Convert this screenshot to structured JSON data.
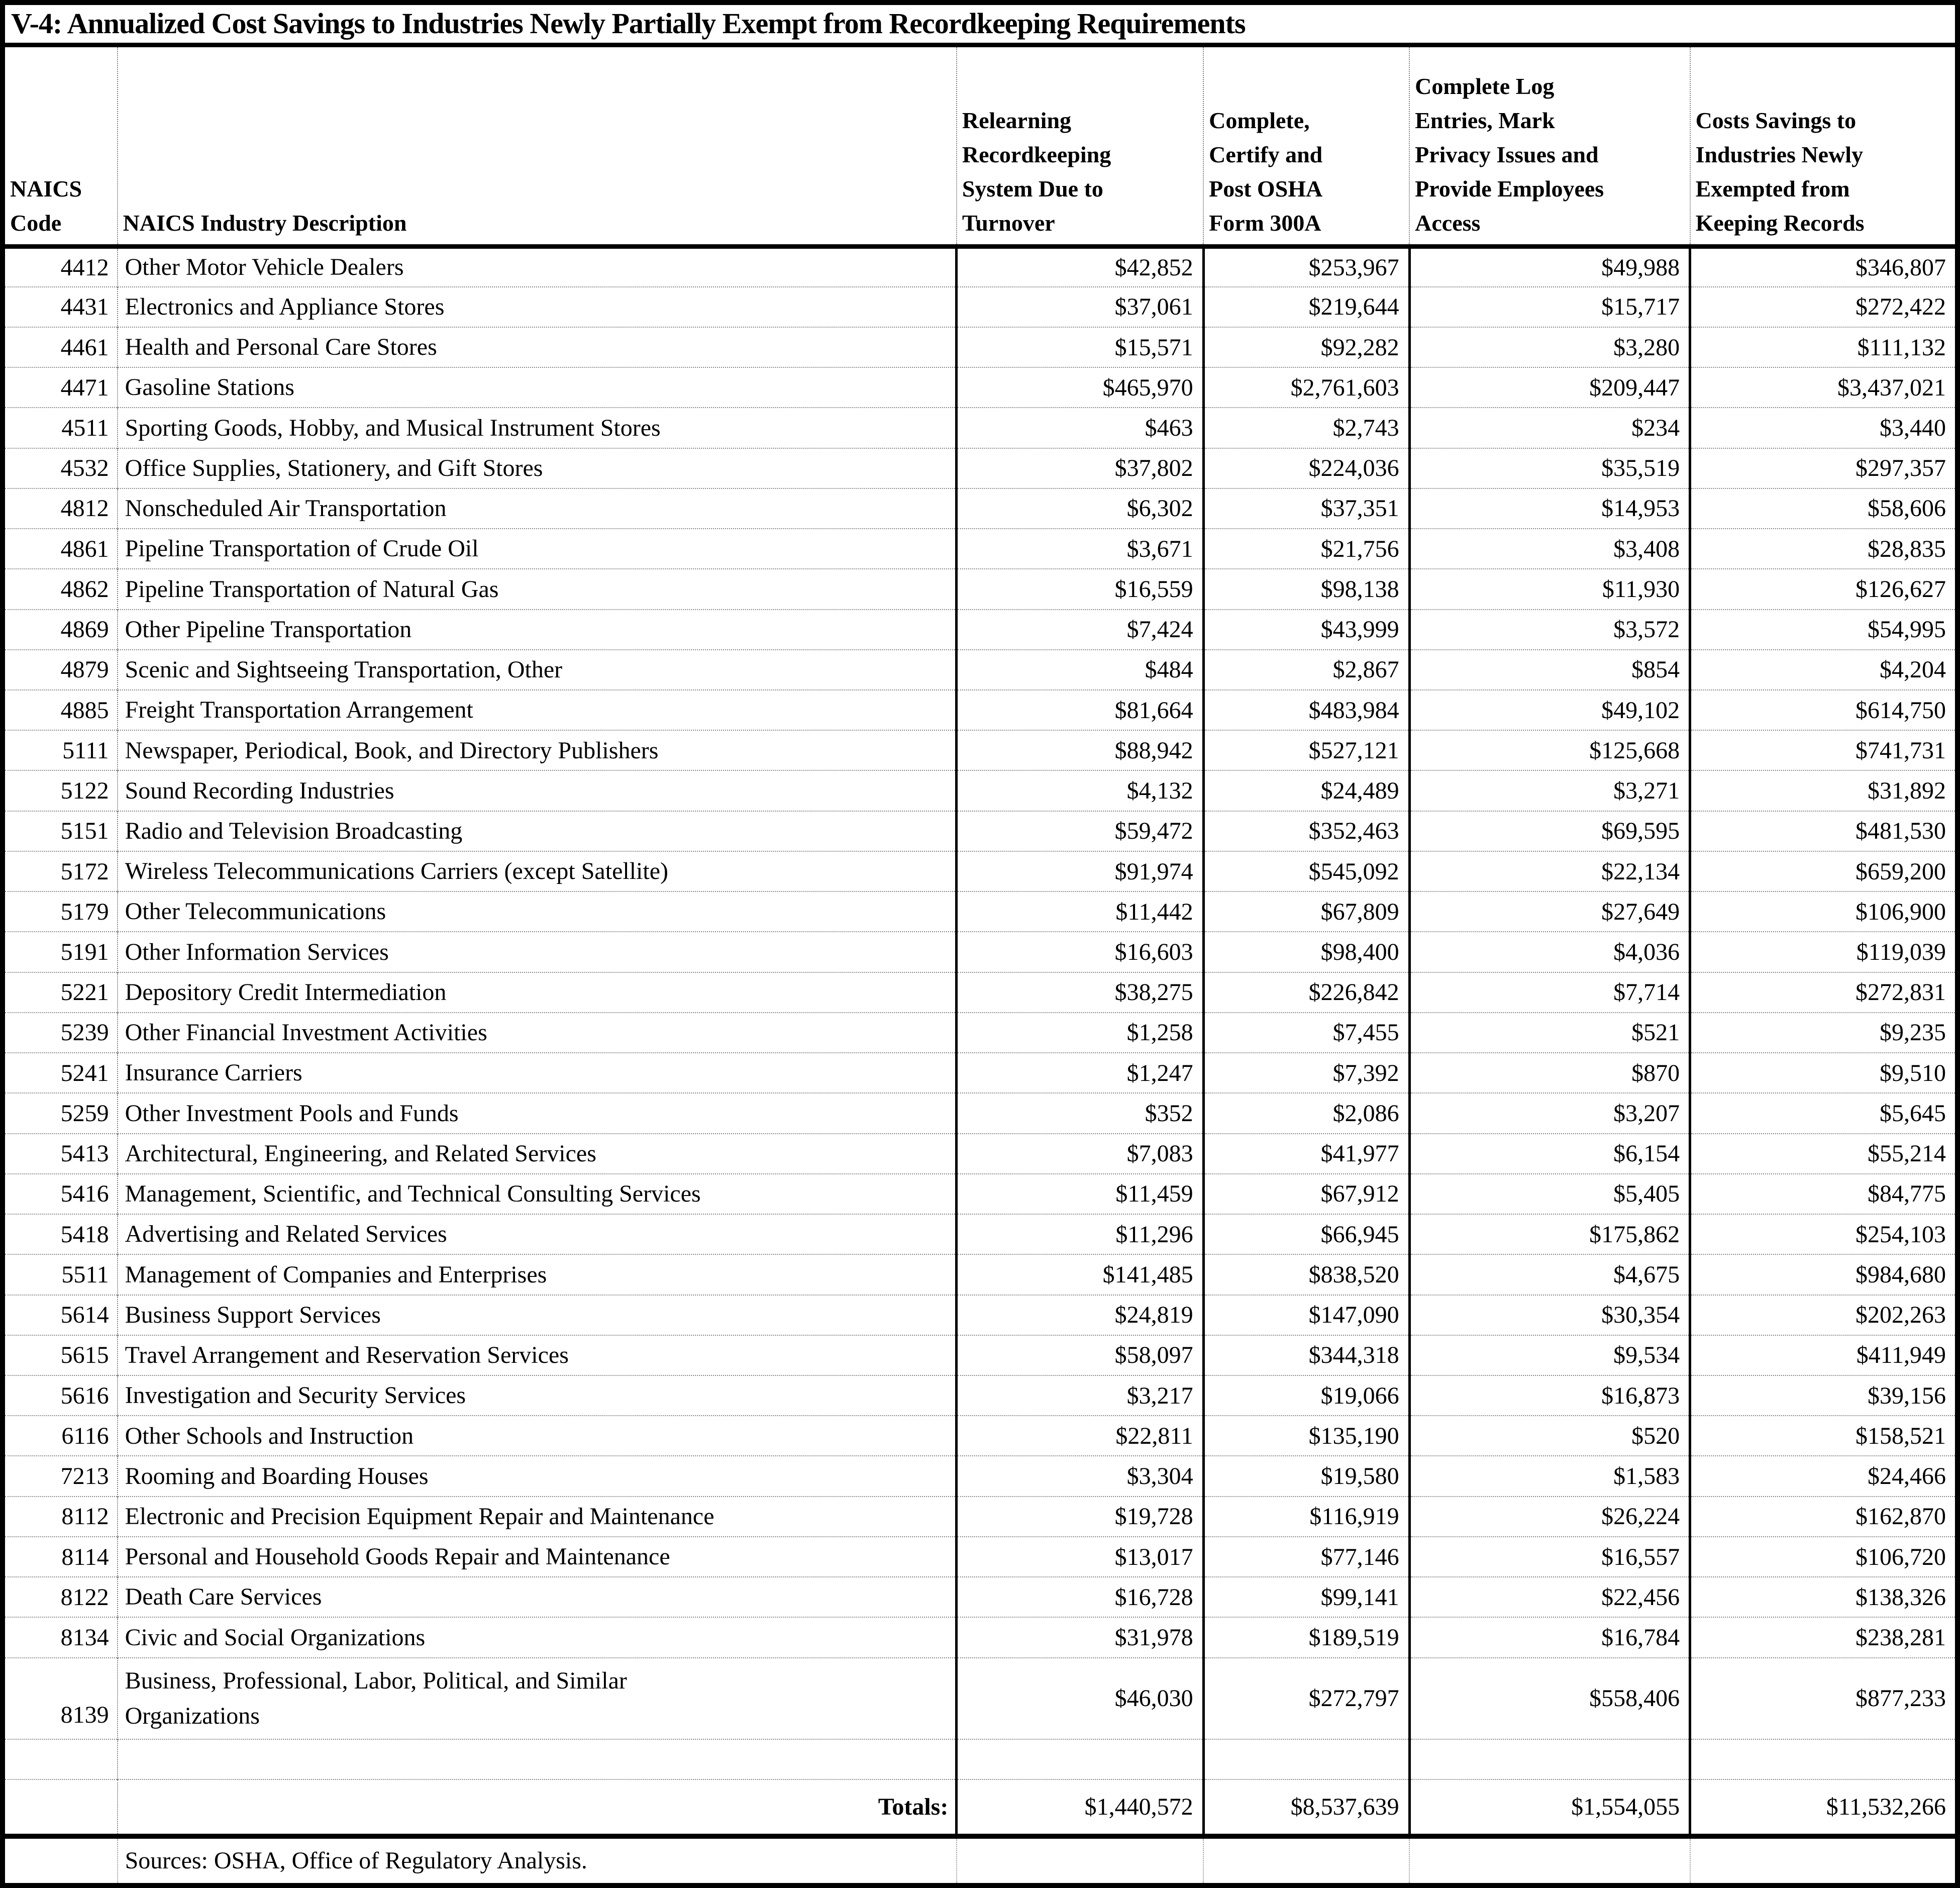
{
  "document": {
    "title": "V-4: Annualized Cost Savings to Industries Newly Partially Exempt from Recordkeeping Requirements",
    "columns": [
      "NAICS\nCode",
      "NAICS Industry Description",
      "Relearning\nRecordkeeping\nSystem Due to\nTurnover",
      "Complete,\nCertify and\nPost OSHA\nForm 300A",
      "Complete Log\nEntries, Mark\nPrivacy Issues and\nProvide Employees\nAccess",
      "Costs Savings to\nIndustries Newly\nExempted from\nKeeping Records"
    ],
    "rows": [
      {
        "code": "4412",
        "description": "Other Motor Vehicle Dealers",
        "relearning": "$42,852",
        "certify_post": "$253,967",
        "log_entries": "$49,988",
        "cost_savings": "$346,807"
      },
      {
        "code": "4431",
        "description": "Electronics and Appliance Stores",
        "relearning": "$37,061",
        "certify_post": "$219,644",
        "log_entries": "$15,717",
        "cost_savings": "$272,422"
      },
      {
        "code": "4461",
        "description": "Health and Personal Care Stores",
        "relearning": "$15,571",
        "certify_post": "$92,282",
        "log_entries": "$3,280",
        "cost_savings": "$111,132"
      },
      {
        "code": "4471",
        "description": "Gasoline Stations",
        "relearning": "$465,970",
        "certify_post": "$2,761,603",
        "log_entries": "$209,447",
        "cost_savings": "$3,437,021"
      },
      {
        "code": "4511",
        "description": "Sporting Goods, Hobby, and Musical Instrument Stores",
        "relearning": "$463",
        "certify_post": "$2,743",
        "log_entries": "$234",
        "cost_savings": "$3,440"
      },
      {
        "code": "4532",
        "description": "Office Supplies, Stationery, and Gift Stores",
        "relearning": "$37,802",
        "certify_post": "$224,036",
        "log_entries": "$35,519",
        "cost_savings": "$297,357"
      },
      {
        "code": "4812",
        "description": "Nonscheduled Air Transportation",
        "relearning": "$6,302",
        "certify_post": "$37,351",
        "log_entries": "$14,953",
        "cost_savings": "$58,606"
      },
      {
        "code": "4861",
        "description": "Pipeline Transportation of Crude Oil",
        "relearning": "$3,671",
        "certify_post": "$21,756",
        "log_entries": "$3,408",
        "cost_savings": "$28,835"
      },
      {
        "code": "4862",
        "description": "Pipeline Transportation of Natural Gas",
        "relearning": "$16,559",
        "certify_post": "$98,138",
        "log_entries": "$11,930",
        "cost_savings": "$126,627"
      },
      {
        "code": "4869",
        "description": "Other Pipeline Transportation",
        "relearning": "$7,424",
        "certify_post": "$43,999",
        "log_entries": "$3,572",
        "cost_savings": "$54,995"
      },
      {
        "code": "4879",
        "description": "Scenic and Sightseeing Transportation, Other",
        "relearning": "$484",
        "certify_post": "$2,867",
        "log_entries": "$854",
        "cost_savings": "$4,204"
      },
      {
        "code": "4885",
        "description": "Freight Transportation Arrangement",
        "relearning": "$81,664",
        "certify_post": "$483,984",
        "log_entries": "$49,102",
        "cost_savings": "$614,750"
      },
      {
        "code": "5111",
        "description": "Newspaper, Periodical, Book, and Directory Publishers",
        "relearning": "$88,942",
        "certify_post": "$527,121",
        "log_entries": "$125,668",
        "cost_savings": "$741,731"
      },
      {
        "code": "5122",
        "description": "Sound Recording Industries",
        "relearning": "$4,132",
        "certify_post": "$24,489",
        "log_entries": "$3,271",
        "cost_savings": "$31,892"
      },
      {
        "code": "5151",
        "description": "Radio and Television Broadcasting",
        "relearning": "$59,472",
        "certify_post": "$352,463",
        "log_entries": "$69,595",
        "cost_savings": "$481,530"
      },
      {
        "code": "5172",
        "description": "Wireless Telecommunications Carriers (except Satellite)",
        "relearning": "$91,974",
        "certify_post": "$545,092",
        "log_entries": "$22,134",
        "cost_savings": "$659,200"
      },
      {
        "code": "5179",
        "description": "Other Telecommunications",
        "relearning": "$11,442",
        "certify_post": "$67,809",
        "log_entries": "$27,649",
        "cost_savings": "$106,900"
      },
      {
        "code": "5191",
        "description": "Other Information Services",
        "relearning": "$16,603",
        "certify_post": "$98,400",
        "log_entries": "$4,036",
        "cost_savings": "$119,039"
      },
      {
        "code": "5221",
        "description": "Depository Credit Intermediation",
        "relearning": "$38,275",
        "certify_post": "$226,842",
        "log_entries": "$7,714",
        "cost_savings": "$272,831"
      },
      {
        "code": "5239",
        "description": "Other Financial Investment Activities",
        "relearning": "$1,258",
        "certify_post": "$7,455",
        "log_entries": "$521",
        "cost_savings": "$9,235"
      },
      {
        "code": "5241",
        "description": "Insurance Carriers",
        "relearning": "$1,247",
        "certify_post": "$7,392",
        "log_entries": "$870",
        "cost_savings": "$9,510"
      },
      {
        "code": "5259",
        "description": "Other Investment Pools and Funds",
        "relearning": "$352",
        "certify_post": "$2,086",
        "log_entries": "$3,207",
        "cost_savings": "$5,645"
      },
      {
        "code": "5413",
        "description": "Architectural, Engineering, and Related Services",
        "relearning": "$7,083",
        "certify_post": "$41,977",
        "log_entries": "$6,154",
        "cost_savings": "$55,214"
      },
      {
        "code": "5416",
        "description": "Management, Scientific, and Technical Consulting Services",
        "relearning": "$11,459",
        "certify_post": "$67,912",
        "log_entries": "$5,405",
        "cost_savings": "$84,775"
      },
      {
        "code": "5418",
        "description": "Advertising and Related Services",
        "relearning": "$11,296",
        "certify_post": "$66,945",
        "log_entries": "$175,862",
        "cost_savings": "$254,103"
      },
      {
        "code": "5511",
        "description": "Management of Companies and Enterprises",
        "relearning": "$141,485",
        "certify_post": "$838,520",
        "log_entries": "$4,675",
        "cost_savings": "$984,680"
      },
      {
        "code": "5614",
        "description": "Business Support Services",
        "relearning": "$24,819",
        "certify_post": "$147,090",
        "log_entries": "$30,354",
        "cost_savings": "$202,263"
      },
      {
        "code": "5615",
        "description": "Travel Arrangement and Reservation Services",
        "relearning": "$58,097",
        "certify_post": "$344,318",
        "log_entries": "$9,534",
        "cost_savings": "$411,949"
      },
      {
        "code": "5616",
        "description": "Investigation and Security Services",
        "relearning": "$3,217",
        "certify_post": "$19,066",
        "log_entries": "$16,873",
        "cost_savings": "$39,156"
      },
      {
        "code": "6116",
        "description": "Other Schools and Instruction",
        "relearning": "$22,811",
        "certify_post": "$135,190",
        "log_entries": "$520",
        "cost_savings": "$158,521"
      },
      {
        "code": "7213",
        "description": "Rooming and Boarding Houses",
        "relearning": "$3,304",
        "certify_post": "$19,580",
        "log_entries": "$1,583",
        "cost_savings": "$24,466"
      },
      {
        "code": "8112",
        "description": "Electronic and Precision Equipment Repair and Maintenance",
        "relearning": "$19,728",
        "certify_post": "$116,919",
        "log_entries": "$26,224",
        "cost_savings": "$162,870"
      },
      {
        "code": "8114",
        "description": "Personal and Household Goods Repair and Maintenance",
        "relearning": "$13,017",
        "certify_post": "$77,146",
        "log_entries": "$16,557",
        "cost_savings": "$106,720"
      },
      {
        "code": "8122",
        "description": "Death Care Services",
        "relearning": "$16,728",
        "certify_post": "$99,141",
        "log_entries": "$22,456",
        "cost_savings": "$138,326"
      },
      {
        "code": "8134",
        "description": "Civic and Social Organizations",
        "relearning": "$31,978",
        "certify_post": "$189,519",
        "log_entries": "$16,784",
        "cost_savings": "$238,281"
      },
      {
        "code": "8139",
        "description": "Business, Professional, Labor, Political, and Similar\nOrganizations",
        "relearning": "$46,030",
        "certify_post": "$272,797",
        "log_entries": "$558,406",
        "cost_savings": "$877,233"
      }
    ],
    "totals": {
      "label": "Totals:",
      "relearning": "$1,440,572",
      "certify_post": "$8,537,639",
      "log_entries": "$1,554,055",
      "cost_savings": "$11,532,266"
    },
    "source_note": "Sources:  OSHA, Office of Regulatory Analysis."
  }
}
